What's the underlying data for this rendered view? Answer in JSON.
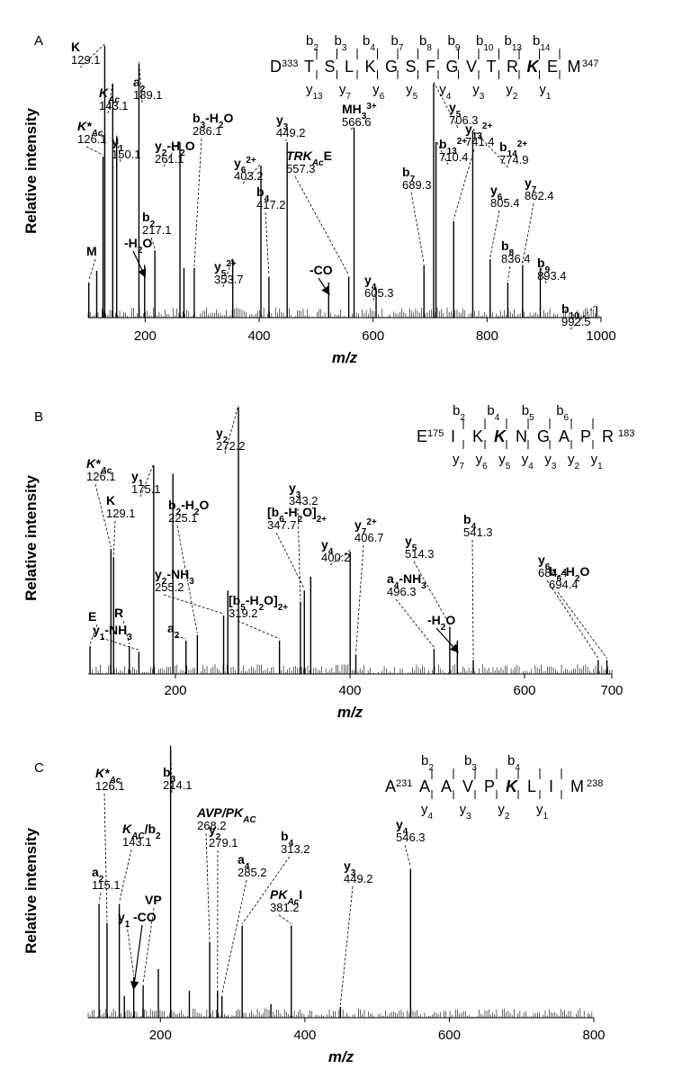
{
  "chart_data": [
    {
      "type": "bar",
      "panel_label": "A",
      "xlabel": "m/z",
      "ylabel": "Relative intensity",
      "xlim": [
        100,
        1000
      ],
      "xticks": [
        "200",
        "400",
        "600",
        "800",
        "1000"
      ],
      "sequence": {
        "start_residue": "D",
        "start_num": "333",
        "residues": [
          "T",
          "S",
          "L",
          "K",
          "G",
          "S",
          "F",
          "G",
          "V",
          "T",
          "R",
          "K",
          "E",
          "M"
        ],
        "end_num": "347",
        "b_ions": [
          "b2",
          "b3",
          "b4",
          "b7",
          "b8",
          "b9",
          "b10",
          "b13",
          "b14"
        ],
        "y_ions": [
          "y13",
          "y7",
          "y6",
          "y5",
          "y4",
          "y3",
          "y2",
          "y1"
        ]
      },
      "peaks": [
        {
          "mz": 101.1,
          "intensity": 0.12
        },
        {
          "mz": 115.0,
          "intensity": 0.16
        },
        {
          "mz": 126.1,
          "intensity": 0.55
        },
        {
          "mz": 129.1,
          "intensity": 0.93
        },
        {
          "mz": 143.1,
          "intensity": 0.8
        },
        {
          "mz": 150.1,
          "intensity": 0.62
        },
        {
          "mz": 189.1,
          "intensity": 0.87
        },
        {
          "mz": 199.1,
          "intensity": 0.18
        },
        {
          "mz": 217.1,
          "intensity": 0.23
        },
        {
          "mz": 261.1,
          "intensity": 0.6
        },
        {
          "mz": 268.1,
          "intensity": 0.17
        },
        {
          "mz": 286.1,
          "intensity": 0.17
        },
        {
          "mz": 353.7,
          "intensity": 0.2
        },
        {
          "mz": 403.2,
          "intensity": 0.52
        },
        {
          "mz": 417.2,
          "intensity": 0.14
        },
        {
          "mz": 449.2,
          "intensity": 0.6
        },
        {
          "mz": 522.0,
          "intensity": 0.12
        },
        {
          "mz": 557.3,
          "intensity": 0.14
        },
        {
          "mz": 566.6,
          "intensity": 0.65
        },
        {
          "mz": 605.3,
          "intensity": 0.1
        },
        {
          "mz": 689.3,
          "intensity": 0.18
        },
        {
          "mz": 706.3,
          "intensity": 0.8
        },
        {
          "mz": 710.4,
          "intensity": 0.6
        },
        {
          "mz": 741.4,
          "intensity": 0.33
        },
        {
          "mz": 774.9,
          "intensity": 0.64
        },
        {
          "mz": 805.4,
          "intensity": 0.2
        },
        {
          "mz": 836.4,
          "intensity": 0.12
        },
        {
          "mz": 862.4,
          "intensity": 0.18
        },
        {
          "mz": 893.4,
          "intensity": 0.17
        },
        {
          "mz": 992.5,
          "intensity": 0.04
        }
      ],
      "annotations": [
        {
          "label": "K",
          "value": "129.1"
        },
        {
          "label": "a2",
          "value": "189.1"
        },
        {
          "label": "KAc",
          "value": "143.1"
        },
        {
          "label": "K*Ac",
          "value": "126.1"
        },
        {
          "label": "y1",
          "value": "150.1"
        },
        {
          "label": "y2-H2O",
          "value": "261.1"
        },
        {
          "label": "b3-H2O",
          "value": "286.1"
        },
        {
          "label": "y3",
          "value": "449.2"
        },
        {
          "label": "MH3 3+",
          "value": "566.6"
        },
        {
          "label": "y5",
          "value": "706.3"
        },
        {
          "label": "y13 2+",
          "value": "741.4"
        },
        {
          "label": "y6 2+",
          "value": "403.2"
        },
        {
          "label": "b4",
          "value": "417.2"
        },
        {
          "label": "TRKAcE",
          "value": "557.3"
        },
        {
          "label": "b2",
          "value": "217.1"
        },
        {
          "label": "y5 2+",
          "value": "353.7"
        },
        {
          "label": "b7",
          "value": "689.3"
        },
        {
          "label": "b13 2+",
          "value": "710.4"
        },
        {
          "label": "b14 2+",
          "value": "774.9"
        },
        {
          "label": "y6",
          "value": "805.4"
        },
        {
          "label": "y7",
          "value": "862.4"
        },
        {
          "label": "b8",
          "value": "836.4"
        },
        {
          "label": "b9",
          "value": "893.4"
        },
        {
          "label": "y4",
          "value": "605.3"
        },
        {
          "label": "b10",
          "value": "992.5"
        },
        {
          "label": "M",
          "value": ""
        },
        {
          "label": "-H2O",
          "value": ""
        },
        {
          "label": "-CO",
          "value": ""
        }
      ]
    },
    {
      "type": "bar",
      "panel_label": "B",
      "xlabel": "m/z",
      "ylabel": "Relative intensity",
      "xlim": [
        100,
        700
      ],
      "xticks": [
        "200",
        "400",
        "600",
        "700"
      ],
      "sequence": {
        "start_residue": "E",
        "start_num": "175",
        "residues": [
          "I",
          "K",
          "K",
          "N",
          "G",
          "A",
          "P",
          "R"
        ],
        "end_num": "183",
        "b_ions": [
          "b2",
          "b4",
          "b5",
          "b6"
        ],
        "y_ions": [
          "y7",
          "y6",
          "y5",
          "y4",
          "y3",
          "y2",
          "y1"
        ]
      },
      "peaks": [
        {
          "mz": 102.1,
          "intensity": 0.1
        },
        {
          "mz": 126.1,
          "intensity": 0.45
        },
        {
          "mz": 129.1,
          "intensity": 0.42
        },
        {
          "mz": 147.1,
          "intensity": 0.1
        },
        {
          "mz": 158.1,
          "intensity": 0.08
        },
        {
          "mz": 175.1,
          "intensity": 0.75
        },
        {
          "mz": 197.1,
          "intensity": 0.72
        },
        {
          "mz": 212.1,
          "intensity": 0.12
        },
        {
          "mz": 225.1,
          "intensity": 0.14
        },
        {
          "mz": 255.2,
          "intensity": 0.21
        },
        {
          "mz": 260.0,
          "intensity": 0.3
        },
        {
          "mz": 272.2,
          "intensity": 0.96
        },
        {
          "mz": 319.2,
          "intensity": 0.12
        },
        {
          "mz": 343.2,
          "intensity": 0.26
        },
        {
          "mz": 347.7,
          "intensity": 0.3
        },
        {
          "mz": 355.0,
          "intensity": 0.35
        },
        {
          "mz": 400.2,
          "intensity": 0.44
        },
        {
          "mz": 406.7,
          "intensity": 0.07
        },
        {
          "mz": 496.3,
          "intensity": 0.09
        },
        {
          "mz": 514.3,
          "intensity": 0.17
        },
        {
          "mz": 523.0,
          "intensity": 0.12
        },
        {
          "mz": 541.3,
          "intensity": 0.05
        },
        {
          "mz": 684.4,
          "intensity": 0.05
        },
        {
          "mz": 694.4,
          "intensity": 0.05
        }
      ],
      "annotations": [
        {
          "label": "y2",
          "value": "272.2"
        },
        {
          "label": "y1",
          "value": "175.1"
        },
        {
          "label": "K*Ac",
          "value": "126.1"
        },
        {
          "label": "y3",
          "value": "343.2"
        },
        {
          "label": "[b6-H2O]2+",
          "value": "347.7"
        },
        {
          "label": "y7 2+",
          "value": "406.7"
        },
        {
          "label": "b4",
          "value": "541.3"
        },
        {
          "label": "y5",
          "value": "514.3"
        },
        {
          "label": "K",
          "value": "129.1"
        },
        {
          "label": "b2-H2O",
          "value": "225.1"
        },
        {
          "label": "y4",
          "value": "400.2"
        },
        {
          "label": "y6",
          "value": "684.4"
        },
        {
          "label": "b6-H2O",
          "value": "694.4"
        },
        {
          "label": "y2-NH3",
          "value": "255.2"
        },
        {
          "label": "a4-NH3",
          "value": "496.3"
        },
        {
          "label": "[b5-H2O]2+",
          "value": "319.2"
        },
        {
          "label": "E",
          "value": ""
        },
        {
          "label": "R",
          "value": ""
        },
        {
          "label": "y1-NH3",
          "value": ""
        },
        {
          "label": "a2",
          "value": ""
        },
        {
          "label": "-H2O",
          "value": ""
        }
      ]
    },
    {
      "type": "bar",
      "panel_label": "C",
      "xlabel": "m/z",
      "ylabel": "Relative intensity",
      "xlim": [
        100,
        800
      ],
      "xticks": [
        "200",
        "400",
        "600",
        "800"
      ],
      "sequence": {
        "start_residue": "A",
        "start_num": "231",
        "residues": [
          "A",
          "A",
          "V",
          "P",
          "K",
          "L",
          "I",
          "M"
        ],
        "end_num": "238",
        "b_ions": [
          "b2",
          "b3",
          "b4"
        ],
        "y_ions": [
          "y4",
          "y3",
          "y2",
          "y1"
        ]
      },
      "peaks": [
        {
          "mz": 115.1,
          "intensity": 0.42
        },
        {
          "mz": 126.1,
          "intensity": 0.35
        },
        {
          "mz": 143.1,
          "intensity": 0.42
        },
        {
          "mz": 150.1,
          "intensity": 0.08
        },
        {
          "mz": 163.1,
          "intensity": 0.15
        },
        {
          "mz": 176.1,
          "intensity": 0.12
        },
        {
          "mz": 197.1,
          "intensity": 0.18
        },
        {
          "mz": 214.1,
          "intensity": 1.0
        },
        {
          "mz": 240.1,
          "intensity": 0.1
        },
        {
          "mz": 268.2,
          "intensity": 0.28
        },
        {
          "mz": 279.1,
          "intensity": 0.1
        },
        {
          "mz": 285.2,
          "intensity": 0.08
        },
        {
          "mz": 313.2,
          "intensity": 0.34
        },
        {
          "mz": 353.0,
          "intensity": 0.05
        },
        {
          "mz": 381.2,
          "intensity": 0.34
        },
        {
          "mz": 449.2,
          "intensity": 0.04
        },
        {
          "mz": 546.3,
          "intensity": 0.55
        }
      ],
      "annotations": [
        {
          "label": "b3",
          "value": "214.1"
        },
        {
          "label": "K*Ac",
          "value": "126.1"
        },
        {
          "label": "AVP/PKAC",
          "value": "268.2"
        },
        {
          "label": "y2",
          "value": "279.1"
        },
        {
          "label": "b4",
          "value": "313.2"
        },
        {
          "label": "KAC/b2",
          "value": "143.1"
        },
        {
          "label": "a4",
          "value": "285.2"
        },
        {
          "label": "y3",
          "value": "449.2"
        },
        {
          "label": "y4",
          "value": "546.3"
        },
        {
          "label": "a2",
          "value": "115.1"
        },
        {
          "label": "PKAcI",
          "value": "381.2"
        },
        {
          "label": "VP",
          "value": ""
        },
        {
          "label": "y1",
          "value": ""
        },
        {
          "label": "-CO",
          "value": ""
        }
      ]
    }
  ]
}
